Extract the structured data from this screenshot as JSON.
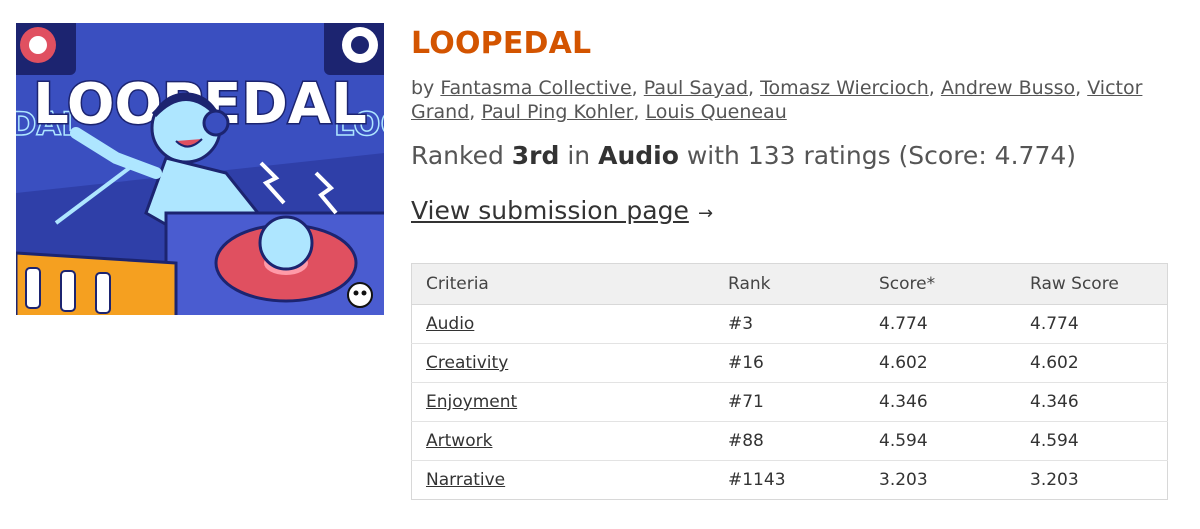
{
  "cover": {
    "logo_text": "LOOPEDAL",
    "side_text_left": "EDAL",
    "side_text_right": "LOOI",
    "colors": {
      "bg": "#2a3a9a",
      "accent": "#e05060",
      "orange": "#f5a020",
      "cyan": "#aee6ff"
    }
  },
  "game": {
    "title": "LOOPEDAL",
    "by_prefix": "by",
    "authors": [
      "Fantasma Collective",
      "Paul Sayad",
      "Tomasz Wiercioch",
      "Andrew Busso",
      "Victor Grand",
      "Paul Ping Kohler",
      "Louis Queneau"
    ],
    "ranked_prefix": "Ranked",
    "rank": "3rd",
    "in_word": "in",
    "category": "Audio",
    "ratings_text": "with 133 ratings (Score: 4.774)",
    "view_link": "View submission page",
    "arrow": "→"
  },
  "table": {
    "headers": [
      "Criteria",
      "Rank",
      "Score*",
      "Raw Score"
    ],
    "rows": [
      {
        "criteria": "Audio",
        "rank": "#3",
        "score": "4.774",
        "raw": "4.774"
      },
      {
        "criteria": "Creativity",
        "rank": "#16",
        "score": "4.602",
        "raw": "4.602"
      },
      {
        "criteria": "Enjoyment",
        "rank": "#71",
        "score": "4.346",
        "raw": "4.346"
      },
      {
        "criteria": "Artwork",
        "rank": "#88",
        "score": "4.594",
        "raw": "4.594"
      },
      {
        "criteria": "Narrative",
        "rank": "#1143",
        "score": "3.203",
        "raw": "3.203"
      }
    ]
  },
  "colors": {
    "title": "#d35400",
    "text": "#555555",
    "table_header_bg": "#f0f0f0"
  }
}
